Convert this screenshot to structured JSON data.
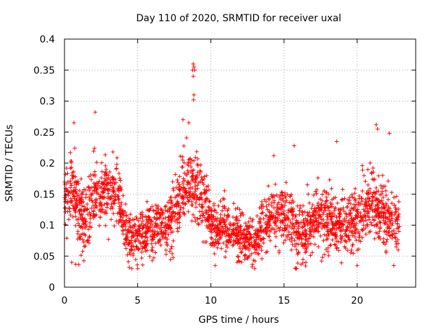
{
  "chart_data": {
    "type": "scatter",
    "title": "Day 110 of 2020, SRMTID for receiver uxal",
    "xlabel": "GPS time / hours",
    "ylabel": "SRMTID / TECUs",
    "xlim": [
      0,
      24
    ],
    "ylim": [
      0,
      0.4
    ],
    "xticks": [
      0,
      5,
      10,
      15,
      20
    ],
    "xtick_labels": [
      "0",
      "5",
      "10",
      "15",
      "20"
    ],
    "yticks": [
      0,
      0.05,
      0.1,
      0.15,
      0.2,
      0.25,
      0.3,
      0.35,
      0.4
    ],
    "ytick_labels": [
      "0",
      "0.05",
      "0.1",
      "0.15",
      "0.2",
      "0.25",
      "0.3",
      "0.35",
      "0.4"
    ],
    "grid": true,
    "marker": "+",
    "marker_color": "#ff0000",
    "data_extent_hours": [
      0,
      22.9
    ],
    "trend": {
      "description": "approximate local median of the dense point cloud",
      "x": [
        0,
        0.5,
        1,
        1.5,
        2,
        2.5,
        3,
        3.5,
        4,
        4.5,
        5,
        5.5,
        6,
        6.5,
        7,
        7.5,
        8,
        8.5,
        9,
        9.5,
        10,
        10.5,
        11,
        11.5,
        12,
        12.5,
        13,
        13.5,
        14,
        14.5,
        15,
        15.5,
        16,
        16.5,
        17,
        17.5,
        18,
        18.5,
        19,
        19.5,
        20,
        20.5,
        21,
        21.5,
        22,
        22.5,
        22.9
      ],
      "y": [
        0.15,
        0.15,
        0.12,
        0.11,
        0.15,
        0.15,
        0.155,
        0.16,
        0.11,
        0.085,
        0.08,
        0.085,
        0.09,
        0.1,
        0.095,
        0.12,
        0.15,
        0.16,
        0.165,
        0.14,
        0.1,
        0.095,
        0.1,
        0.09,
        0.085,
        0.075,
        0.075,
        0.095,
        0.11,
        0.12,
        0.12,
        0.1,
        0.09,
        0.09,
        0.11,
        0.115,
        0.105,
        0.105,
        0.1,
        0.1,
        0.11,
        0.13,
        0.13,
        0.12,
        0.11,
        0.1,
        0.095
      ]
    },
    "spread": {
      "description": "approximate vertical scatter half-width around the trend",
      "x": [
        0,
        1,
        2,
        3,
        4,
        5,
        7,
        8,
        9,
        10,
        12,
        14,
        16,
        18,
        20,
        21.5,
        22.9
      ],
      "y": [
        0.045,
        0.05,
        0.05,
        0.045,
        0.04,
        0.03,
        0.035,
        0.05,
        0.05,
        0.035,
        0.03,
        0.035,
        0.04,
        0.04,
        0.04,
        0.045,
        0.035
      ]
    },
    "point_count": 2400,
    "notable_points": [
      {
        "x": 8.8,
        "y": 0.36
      },
      {
        "x": 8.85,
        "y": 0.355
      },
      {
        "x": 8.75,
        "y": 0.35
      },
      {
        "x": 8.9,
        "y": 0.35
      },
      {
        "x": 8.8,
        "y": 0.34
      },
      {
        "x": 8.85,
        "y": 0.31
      },
      {
        "x": 8.82,
        "y": 0.302
      },
      {
        "x": 2.1,
        "y": 0.282
      },
      {
        "x": 8.1,
        "y": 0.27
      },
      {
        "x": 8.5,
        "y": 0.265
      },
      {
        "x": 0.65,
        "y": 0.265
      },
      {
        "x": 21.3,
        "y": 0.262
      },
      {
        "x": 21.4,
        "y": 0.255
      },
      {
        "x": 22.2,
        "y": 0.248
      },
      {
        "x": 18.6,
        "y": 0.235
      },
      {
        "x": 15.7,
        "y": 0.228
      },
      {
        "x": 14.3,
        "y": 0.212
      },
      {
        "x": 4.6,
        "y": 0.03
      },
      {
        "x": 5.0,
        "y": 0.03
      },
      {
        "x": 15.8,
        "y": 0.03
      },
      {
        "x": 0.5,
        "y": 0.04
      },
      {
        "x": 13.0,
        "y": 0.03
      },
      {
        "x": 20.0,
        "y": 0.035
      },
      {
        "x": 22.5,
        "y": 0.035
      },
      {
        "x": 10.3,
        "y": 0.035
      },
      {
        "x": 11.8,
        "y": 0.04
      },
      {
        "x": 16.5,
        "y": 0.04
      }
    ]
  }
}
